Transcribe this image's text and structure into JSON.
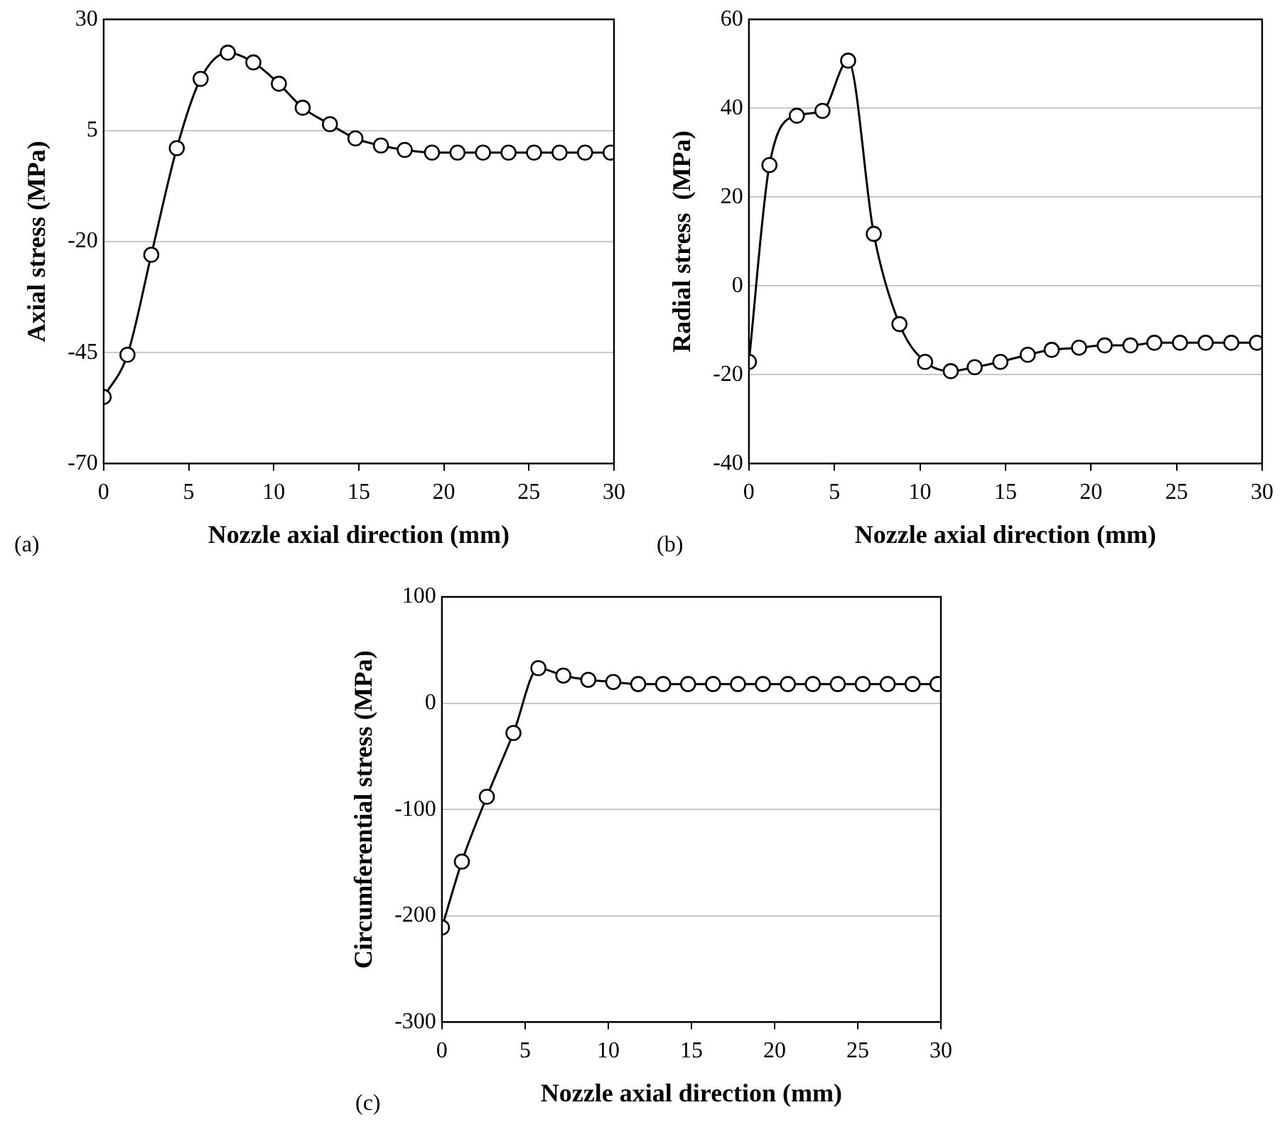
{
  "chart_data": [
    {
      "type": "line",
      "xlabel": "Nozzle axial direction (mm)",
      "ylabel": "Axial stress (MPa)",
      "annotations": [
        "(a)"
      ],
      "grid": "y",
      "marker": "circle",
      "line_style": "solid",
      "xlim": [
        0,
        30
      ],
      "xticks": [
        0,
        5,
        10,
        15,
        20,
        25,
        30
      ],
      "ylim": [
        -70,
        30
      ],
      "yticks": [
        -70,
        -45,
        -20,
        5,
        30
      ],
      "series": [
        {
          "color": "#000000",
          "x": [
            0,
            1.4,
            2.8,
            4.3,
            5.7,
            7.3,
            8.8,
            10.3,
            11.7,
            13.3,
            14.8,
            16.3,
            17.7,
            19.3,
            20.8,
            22.3,
            23.8,
            25.3,
            26.8,
            28.3,
            29.8
          ],
          "values": [
            -55,
            -45.5,
            -23,
            1,
            16.6,
            22.5,
            20.3,
            15.5,
            10.1,
            6.4,
            3.2,
            1.6,
            0.6,
            0,
            0,
            0,
            0,
            0,
            0,
            0,
            0
          ]
        }
      ]
    },
    {
      "type": "line",
      "xlabel": "Nozzle axial direction (mm)",
      "ylabel": "Radial stress  (MPa)",
      "annotations": [
        "(b)"
      ],
      "grid": "y",
      "marker": "circle",
      "line_style": "solid",
      "xlim": [
        0,
        30
      ],
      "xticks": [
        0,
        5,
        10,
        15,
        20,
        25,
        30
      ],
      "ylim": [
        -40,
        60
      ],
      "yticks": [
        -40,
        -20,
        0,
        20,
        40,
        60
      ],
      "series": [
        {
          "color": "#000000",
          "x": [
            0,
            1.2,
            2.8,
            4.3,
            5.8,
            7.3,
            8.8,
            10.3,
            11.8,
            13.2,
            14.7,
            16.3,
            17.7,
            19.3,
            20.8,
            22.3,
            23.7,
            25.2,
            26.7,
            28.2,
            29.7
          ],
          "values": [
            -17.1,
            27.2,
            38.3,
            39.4,
            50.7,
            11.7,
            -8.6,
            -17.1,
            -19.2,
            -18.3,
            -17.1,
            -15.5,
            -14.4,
            -13.9,
            -13.4,
            -13.4,
            -12.8,
            -12.8,
            -12.8,
            -12.8,
            -12.8
          ]
        }
      ]
    },
    {
      "type": "line",
      "xlabel": "Nozzle axial direction (mm)",
      "ylabel": "Circumferential stress (MPa)",
      "annotations": [
        "(c)"
      ],
      "grid": "y",
      "marker": "circle",
      "line_style": "solid",
      "xlim": [
        0,
        30
      ],
      "xticks": [
        0,
        5,
        10,
        15,
        20,
        25,
        30
      ],
      "ylim": [
        -300,
        100
      ],
      "yticks": [
        -300,
        -200,
        -100,
        0,
        100
      ],
      "series": [
        {
          "color": "#000000",
          "x": [
            0,
            1.2,
            2.7,
            4.3,
            5.8,
            7.3,
            8.8,
            10.3,
            11.8,
            13.3,
            14.8,
            16.3,
            17.8,
            19.3,
            20.8,
            22.3,
            23.8,
            25.3,
            26.8,
            28.3,
            29.8
          ],
          "values": [
            -211,
            -149,
            -88,
            -28,
            33,
            26,
            22,
            20,
            18,
            18,
            18,
            18,
            18,
            18,
            18,
            18,
            18,
            18,
            18,
            18,
            18
          ]
        }
      ]
    }
  ]
}
